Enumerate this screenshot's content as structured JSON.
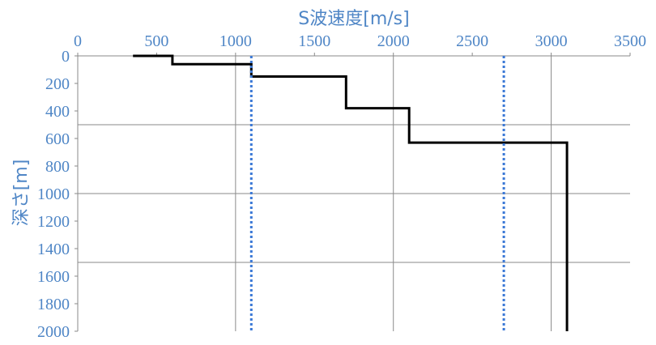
{
  "chart_data": {
    "type": "line",
    "xlabel": "S波速度[m/s]",
    "ylabel": "深さ[m]",
    "x_axis_position": "top",
    "y_axis_inverted": true,
    "xlim": [
      0,
      3500
    ],
    "ylim": [
      0,
      2000
    ],
    "x_ticks": [
      "0",
      "500",
      "1000",
      "1500",
      "2000",
      "2500",
      "3000",
      "3500"
    ],
    "y_ticks": [
      "0",
      "200",
      "400",
      "600",
      "800",
      "1000",
      "1200",
      "1400",
      "1600",
      "1800",
      "2000"
    ],
    "grid": {
      "vertical_at": [
        1000,
        2000,
        3000
      ],
      "horizontal_at": [
        500,
        1000,
        1500
      ]
    },
    "legend": "none",
    "series": [
      {
        "style": "solid",
        "color": "#000000",
        "points": [
          [
            350,
            0
          ],
          [
            600,
            0
          ],
          [
            600,
            60
          ],
          [
            1100,
            60
          ],
          [
            1100,
            150
          ],
          [
            1700,
            150
          ],
          [
            1700,
            380
          ],
          [
            2100,
            380
          ],
          [
            2100,
            630
          ],
          [
            3100,
            630
          ],
          [
            3100,
            2000
          ]
        ]
      },
      {
        "style": "dotted",
        "color": "#3a78d6",
        "points": [
          [
            1100,
            0
          ],
          [
            1100,
            2000
          ]
        ]
      },
      {
        "style": "dotted",
        "color": "#3a78d6",
        "points": [
          [
            2700,
            0
          ],
          [
            2700,
            2000
          ]
        ]
      }
    ]
  },
  "colors": {
    "tick_text": "#4f86c6",
    "grid": "#8a8a8a",
    "axis": "#8a8a8a"
  }
}
